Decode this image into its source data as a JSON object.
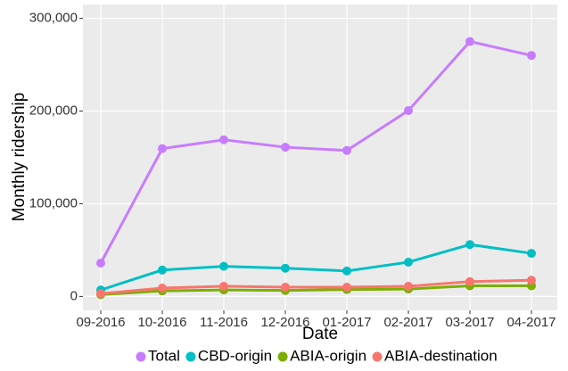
{
  "chart_data": {
    "type": "line",
    "x_label": "Date",
    "y_label": "Monthly ridership",
    "categories": [
      "09-2016",
      "10-2016",
      "11-2016",
      "12-2016",
      "01-2017",
      "02-2017",
      "03-2017",
      "04-2017"
    ],
    "series": [
      {
        "name": "Total",
        "color": "#c77cff",
        "values": [
          36000,
          159500,
          169000,
          161000,
          157500,
          200500,
          275000,
          260000
        ]
      },
      {
        "name": "CBD-origin",
        "color": "#00bfc4",
        "values": [
          7000,
          28500,
          32500,
          30500,
          27500,
          37000,
          56000,
          46500
        ]
      },
      {
        "name": "ABIA-origin",
        "color": "#7cae00",
        "values": [
          2000,
          6000,
          7000,
          6500,
          7500,
          8000,
          11500,
          11500
        ]
      },
      {
        "name": "ABIA-destination",
        "color": "#f8766d",
        "values": [
          3000,
          9000,
          11000,
          10000,
          10000,
          11000,
          16000,
          17500
        ]
      }
    ],
    "ylim": [
      -15000,
      315000
    ],
    "yticks": [
      0,
      {
        "value": 100000,
        "label": "100,000"
      },
      {
        "value": 200000,
        "label": "200,000"
      },
      {
        "value": 300000,
        "label": "300,000"
      }
    ],
    "grid": true,
    "legend": "bottom"
  }
}
